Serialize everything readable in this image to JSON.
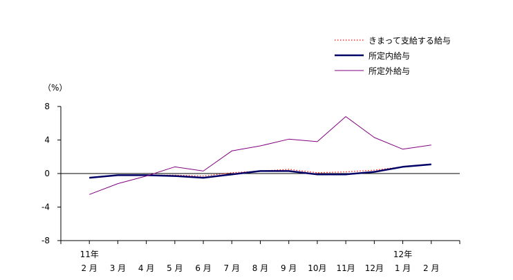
{
  "chart_data": {
    "type": "line",
    "unit_label": "（%）",
    "ylim": [
      -8,
      8
    ],
    "yticks": [
      8,
      4,
      0,
      -4,
      -8
    ],
    "categories": [
      "2 月",
      "3 月",
      "4 月",
      "5 月",
      "6 月",
      "7 月",
      "8 月",
      "9 月",
      "10月",
      "11月",
      "12月",
      "1 月",
      "2 月"
    ],
    "year_labels": [
      {
        "index": 0,
        "label": "11年"
      },
      {
        "index": 11,
        "label": "12年"
      }
    ],
    "legend_position": "top-right",
    "series": [
      {
        "name": "きまって支給する給与",
        "color": "#ff0000",
        "style": "dotted",
        "values": [
          -0.5,
          -0.2,
          -0.2,
          -0.2,
          -0.3,
          0.1,
          0.3,
          0.5,
          0.1,
          0.2,
          0.4,
          0.8,
          1.1
        ]
      },
      {
        "name": "所定内給与",
        "color": "#000066",
        "style": "thick",
        "values": [
          -0.5,
          -0.2,
          -0.2,
          -0.3,
          -0.5,
          -0.1,
          0.3,
          0.3,
          -0.1,
          -0.1,
          0.2,
          0.8,
          1.1
        ]
      },
      {
        "name": "所定外給与",
        "color": "#800080",
        "style": "thin",
        "values": [
          -2.5,
          -1.2,
          -0.3,
          0.8,
          0.3,
          2.7,
          3.3,
          4.1,
          3.8,
          6.8,
          4.3,
          2.9,
          3.4
        ]
      }
    ]
  }
}
